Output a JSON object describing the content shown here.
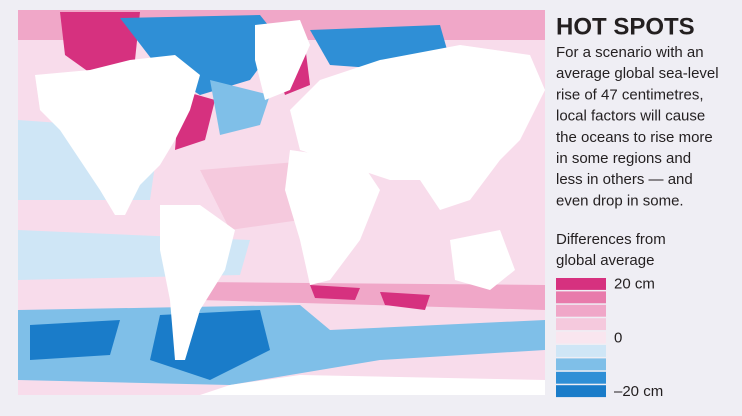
{
  "header": {
    "title": "HOT SPOTS",
    "description": [
      "For a scenario with an",
      "average global sea-level",
      "rise of 47 centimetres,",
      "local factors will cause",
      "the oceans to rise more",
      "in some regions and",
      "less in others — and",
      "even drop in some."
    ]
  },
  "legend": {
    "title": [
      "Differences from",
      "global average"
    ],
    "colors": [
      "#d6317f",
      "#e87bab",
      "#f0a7c8",
      "#f5c9dd",
      "#f9e6ef",
      "#cfe6f6",
      "#7fbfe8",
      "#2f8fd6",
      "#1a7cc9"
    ],
    "labels": [
      {
        "text": "20 cm",
        "at": 0
      },
      {
        "text": "0",
        "at": 4
      },
      {
        "text": "–20 cm",
        "at": 8
      }
    ]
  }
}
